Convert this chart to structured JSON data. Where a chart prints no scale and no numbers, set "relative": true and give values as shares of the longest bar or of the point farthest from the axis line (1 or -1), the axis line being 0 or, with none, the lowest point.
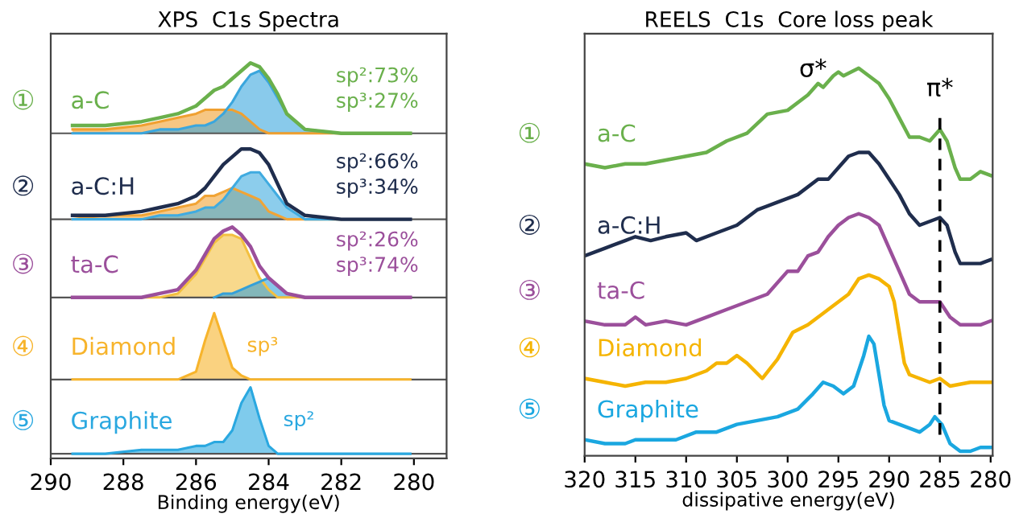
{
  "chart_data": [
    {
      "type": "line",
      "title": "XPS  C1s Spectra",
      "xlabel": "Binding energy(eV)",
      "relative": true,
      "tick_labels": "x",
      "legend": false,
      "grid": false,
      "x": [
        289.4,
        288.5,
        287.5,
        287,
        286.5,
        286,
        285.75,
        285.5,
        285.25,
        285,
        284.75,
        284.5,
        284.25,
        284,
        283.75,
        283.5,
        283,
        282,
        280.1
      ],
      "xlim": [
        290,
        279.1
      ],
      "xticks": [
        290,
        288,
        286,
        284,
        282,
        280
      ],
      "ref_lines": [
        {
          "axis": "y",
          "value": 0.82,
          "color": "#555555"
        },
        {
          "axis": "y",
          "value": 0.6,
          "color": "#555555"
        },
        {
          "axis": "y",
          "value": 0.4,
          "color": "#555555"
        },
        {
          "axis": "y",
          "value": 0.19,
          "color": "#555555"
        },
        {
          "axis": "y",
          "value": 0,
          "color": "#555555"
        }
      ],
      "series": [
        {
          "type": "area",
          "color": "#f0a030",
          "values": [
            0.83,
            0.83,
            0.84,
            0.85,
            0.86,
            0.87,
            0.88,
            0.88,
            0.88,
            0.88,
            0.87,
            0.85,
            0.83,
            0.82,
            0.82,
            0.82,
            0.82,
            0.82,
            0.82
          ]
        },
        {
          "type": "area",
          "color": "#3aa6dd",
          "values": [
            0.82,
            0.82,
            0.82,
            0.83,
            0.83,
            0.84,
            0.84,
            0.85,
            0.87,
            0.9,
            0.94,
            0.97,
            0.98,
            0.95,
            0.91,
            0.87,
            0.83,
            0.82,
            0.82
          ]
        },
        {
          "name": "a-C",
          "color": "#6ab04c",
          "values": [
            0.84,
            0.84,
            0.85,
            0.86,
            0.87,
            0.89,
            0.91,
            0.93,
            0.94,
            0.96,
            0.98,
            1.0,
            0.99,
            0.96,
            0.92,
            0.87,
            0.83,
            0.82,
            0.82
          ]
        },
        {
          "type": "area",
          "color": "#f1a436",
          "values": [
            0.6,
            0.61,
            0.61,
            0.62,
            0.63,
            0.64,
            0.66,
            0.66,
            0.67,
            0.68,
            0.67,
            0.66,
            0.65,
            0.62,
            0.61,
            0.6,
            0.6,
            0.6,
            0.6
          ]
        },
        {
          "type": "area",
          "color": "#40abe0",
          "values": [
            0.6,
            0.6,
            0.6,
            0.61,
            0.61,
            0.62,
            0.63,
            0.63,
            0.65,
            0.68,
            0.71,
            0.72,
            0.72,
            0.69,
            0.66,
            0.63,
            0.6,
            0.6,
            0.6
          ]
        },
        {
          "name": "a-C:H",
          "color": "#1f2d4d",
          "values": [
            0.61,
            0.61,
            0.62,
            0.63,
            0.64,
            0.66,
            0.68,
            0.71,
            0.74,
            0.76,
            0.78,
            0.78,
            0.77,
            0.74,
            0.69,
            0.64,
            0.61,
            0.6,
            0.6
          ]
        },
        {
          "type": "area",
          "color": "#f3c040",
          "values": [
            0.4,
            0.4,
            0.4,
            0.4,
            0.41,
            0.46,
            0.5,
            0.54,
            0.56,
            0.56,
            0.55,
            0.5,
            0.45,
            0.42,
            0.4,
            0.4,
            0.4,
            0.4,
            0.4
          ]
        },
        {
          "type": "area",
          "color": "#35a0d8",
          "values": [
            null,
            null,
            null,
            null,
            null,
            null,
            null,
            0.4,
            0.41,
            0.41,
            0.42,
            0.43,
            0.44,
            0.45,
            0.43,
            0.41,
            0.4,
            null,
            null
          ]
        },
        {
          "name": "ta-C",
          "color": "#9b4f9b",
          "values": [
            0.4,
            0.4,
            0.4,
            0.41,
            0.42,
            0.47,
            0.51,
            0.55,
            0.57,
            0.58,
            0.56,
            0.53,
            0.48,
            0.45,
            0.43,
            0.41,
            0.4,
            0.4,
            0.4
          ]
        },
        {
          "name": "Diamond",
          "type": "area",
          "color": "#f7b42c",
          "values": [
            0.19,
            0.19,
            0.19,
            0.19,
            0.19,
            0.21,
            0.29,
            0.36,
            0.29,
            0.22,
            0.2,
            0.19,
            0.19,
            0.19,
            0.19,
            0.19,
            0.19,
            0.19,
            0.19
          ]
        },
        {
          "name": "Graphite",
          "type": "area",
          "color": "#2aa8e0",
          "values": [
            0.0,
            0.0,
            0.01,
            0.01,
            0.01,
            0.02,
            0.02,
            0.03,
            0.03,
            0.06,
            0.13,
            0.17,
            0.09,
            0.02,
            0.0,
            0.0,
            0.0,
            0.0,
            0.0
          ]
        }
      ],
      "annotations": [
        "①",
        "②",
        "③",
        "④",
        "⑤",
        "sp²:73%",
        "sp³:27%",
        "sp²:66%",
        "sp³:34%",
        "sp²:26%",
        "sp³:74%",
        "sp³",
        "sp²"
      ]
    },
    {
      "type": "line",
      "title": "REELS  C1s  Core loss peak",
      "xlabel": "dissipative energy(eV)",
      "relative": true,
      "tick_labels": "x",
      "legend": false,
      "grid": false,
      "xlim": [
        320,
        279.8
      ],
      "xticks": [
        320,
        315,
        310,
        305,
        300,
        295,
        290,
        285,
        280
      ],
      "series": [
        {
          "name": "a-C",
          "color": "#6ab04c",
          "x": [
            320,
            318,
            316,
            314,
            312,
            310,
            308,
            306,
            304,
            302,
            300,
            298,
            297,
            296.5,
            295.5,
            295,
            294.5,
            293,
            292,
            291,
            290,
            289,
            288,
            287,
            286,
            285,
            284.3,
            283.5,
            283,
            282,
            281,
            280
          ],
          "values": [
            0.75,
            0.74,
            0.75,
            0.75,
            0.76,
            0.77,
            0.78,
            0.81,
            0.83,
            0.88,
            0.89,
            0.93,
            0.96,
            0.95,
            0.98,
            0.99,
            0.98,
            1.0,
            0.98,
            0.96,
            0.92,
            0.87,
            0.82,
            0.82,
            0.81,
            0.84,
            0.81,
            0.74,
            0.71,
            0.71,
            0.73,
            0.72
          ]
        },
        {
          "name": "a-C:H",
          "color": "#1f2d4d",
          "x": [
            320,
            318,
            316,
            315,
            313.5,
            312,
            310,
            309,
            307,
            305,
            303,
            301,
            299,
            297,
            296,
            295,
            294,
            293,
            292,
            291,
            290,
            289,
            288,
            287,
            286,
            285,
            284.3,
            283.5,
            283,
            282,
            281,
            280
          ],
          "values": [
            0.51,
            0.53,
            0.55,
            0.56,
            0.55,
            0.56,
            0.57,
            0.55,
            0.57,
            0.59,
            0.63,
            0.65,
            0.67,
            0.71,
            0.71,
            0.74,
            0.77,
            0.78,
            0.78,
            0.75,
            0.71,
            0.67,
            0.62,
            0.59,
            0.6,
            0.61,
            0.59,
            0.52,
            0.49,
            0.49,
            0.49,
            0.5
          ]
        },
        {
          "name": "ta-C",
          "color": "#9b4f9b",
          "x": [
            320,
            318,
            316,
            315,
            314,
            312,
            310,
            308,
            306,
            304,
            302,
            300,
            299,
            298,
            297,
            296,
            295,
            294,
            293,
            292,
            291,
            290,
            289,
            288,
            287,
            286,
            285,
            284,
            283,
            282,
            281,
            280
          ],
          "values": [
            0.34,
            0.33,
            0.33,
            0.35,
            0.33,
            0.34,
            0.33,
            0.35,
            0.37,
            0.39,
            0.41,
            0.47,
            0.47,
            0.51,
            0.52,
            0.56,
            0.59,
            0.61,
            0.62,
            0.61,
            0.59,
            0.53,
            0.47,
            0.41,
            0.39,
            0.39,
            0.39,
            0.35,
            0.33,
            0.33,
            0.33,
            0.34
          ]
        },
        {
          "name": "Diamond",
          "color": "#f5b400",
          "x": [
            320,
            318,
            316,
            314,
            312,
            310,
            308,
            307,
            306,
            305,
            304,
            302.5,
            301,
            299.5,
            298,
            297,
            296,
            295,
            294,
            293,
            292,
            291,
            290,
            289.5,
            289,
            288.5,
            288,
            286,
            285,
            284,
            282,
            280
          ],
          "values": [
            0.19,
            0.18,
            0.17,
            0.18,
            0.18,
            0.19,
            0.21,
            0.23,
            0.23,
            0.25,
            0.23,
            0.19,
            0.24,
            0.31,
            0.33,
            0.35,
            0.37,
            0.39,
            0.41,
            0.45,
            0.46,
            0.45,
            0.43,
            0.39,
            0.31,
            0.23,
            0.2,
            0.18,
            0.19,
            0.17,
            0.18,
            0.18
          ]
        },
        {
          "name": "Graphite",
          "color": "#1aa7e0",
          "x": [
            320,
            318,
            316,
            315,
            313,
            311,
            309,
            307,
            305,
            303,
            301,
            299,
            297.5,
            296.5,
            295.5,
            294.5,
            293.5,
            292.5,
            292,
            291.5,
            291,
            290.5,
            290,
            289,
            287,
            286,
            285.5,
            284.8,
            284,
            283,
            282,
            281,
            280
          ],
          "values": [
            0.03,
            0.02,
            0.02,
            0.03,
            0.03,
            0.03,
            0.05,
            0.05,
            0.07,
            0.08,
            0.09,
            0.11,
            0.15,
            0.18,
            0.17,
            0.15,
            0.17,
            0.25,
            0.3,
            0.28,
            0.2,
            0.12,
            0.08,
            0.07,
            0.05,
            0.07,
            0.09,
            0.07,
            0.02,
            0.0,
            0.0,
            0.01,
            0.01
          ]
        }
      ],
      "ref_lines": [
        {
          "axis": "x",
          "value": 285,
          "label": "π*",
          "color": "#000000",
          "line_style": "dashed"
        }
      ],
      "annotations": [
        "①",
        "②",
        "③",
        "④",
        "⑤",
        "σ*"
      ]
    }
  ]
}
